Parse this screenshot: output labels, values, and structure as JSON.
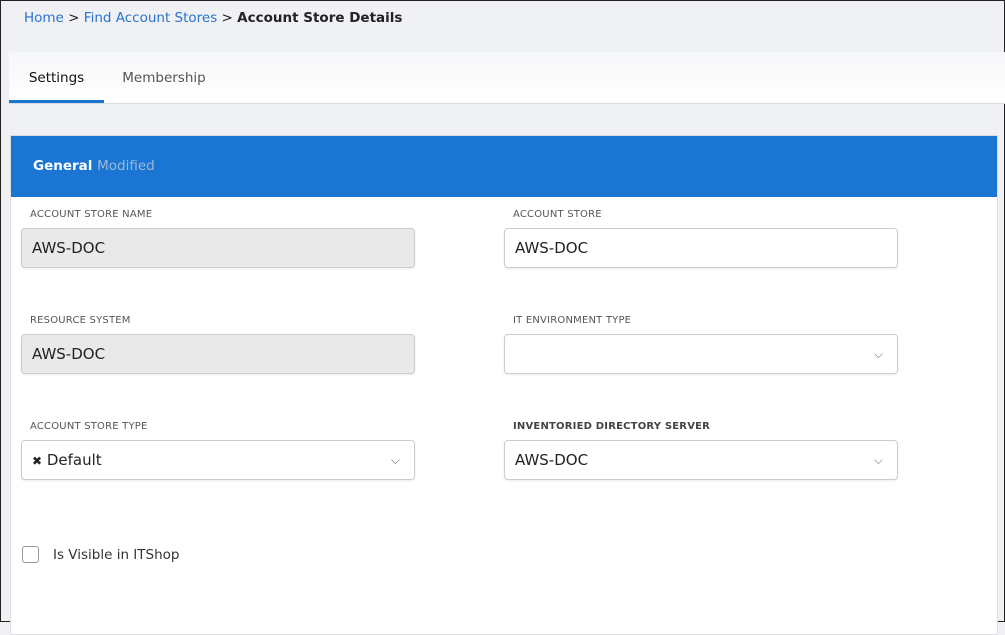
{
  "breadcrumb": {
    "home": "Home",
    "find": "Find Account Stores",
    "current": "Account Store Details",
    "sep": ">"
  },
  "tabs": [
    {
      "label": "Settings",
      "active": true
    },
    {
      "label": "Membership",
      "active": false
    }
  ],
  "section": {
    "title": "General",
    "status": "Modified",
    "color": "#1a76d2"
  },
  "fields": {
    "account_store_name": {
      "label": "ACCOUNT STORE NAME",
      "value": "AWS-DOC"
    },
    "account_store": {
      "label": "ACCOUNT STORE",
      "value": "AWS-DOC"
    },
    "resource_system": {
      "label": "RESOURCE SYSTEM",
      "value": "AWS-DOC"
    },
    "it_environment_type": {
      "label": "IT ENVIRONMENT TYPE",
      "value": ""
    },
    "account_store_type": {
      "label": "ACCOUNT STORE TYPE",
      "value": "Default",
      "clear": "✖"
    },
    "inventoried_directory_server": {
      "label": "INVENTORIED DIRECTORY SERVER",
      "value": "AWS-DOC"
    }
  },
  "checkbox": {
    "label": "Is Visible in ITShop",
    "checked": false
  }
}
